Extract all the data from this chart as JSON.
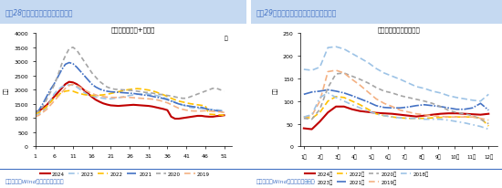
{
  "title_left": "图表28：近半月钢材库存环比续降",
  "title_right": "图表29：近半月电解铝库存环比延续回落",
  "subtitle_left": "钢材库存（厂库+社库）",
  "subtitle_right": "中国库存：电解铝：合计",
  "ylabel_left": "万吨",
  "ylabel_right": "万吨",
  "xlabel_left": "周",
  "xlabel_right": "",
  "source": "资料来源：Wind，国盛证券研究所",
  "background_color": "#ffffff",
  "header_color": "#dce6f1",
  "title_color": "#4472c4",
  "steel": {
    "xlim": [
      1,
      53
    ],
    "ylim": [
      0,
      4000
    ],
    "yticks": [
      0,
      500,
      1000,
      1500,
      2000,
      2500,
      3000,
      3500,
      4000
    ],
    "xticks": [
      1,
      6,
      11,
      16,
      21,
      26,
      31,
      36,
      41,
      46,
      51
    ],
    "series": {
      "2024": {
        "color": "#c00000",
        "lw": 1.5,
        "ls": "solid",
        "dash": null,
        "y": [
          1200,
          1250,
          1350,
          1450,
          1600,
          1750,
          1900,
          2050,
          2200,
          2280,
          2260,
          2200,
          2100,
          1980,
          1870,
          1750,
          1650,
          1580,
          1520,
          1480,
          1450,
          1440,
          1430,
          1440,
          1450,
          1460,
          1470,
          1460,
          1450,
          1440,
          1430,
          1410,
          1380,
          1350,
          1320,
          1280,
          1050,
          980,
          980,
          1000,
          1020,
          1040,
          1060,
          1080,
          1080,
          1060,
          1050,
          1050,
          1070,
          1080,
          1100,
          1100
        ]
      },
      "2023": {
        "color": "#9dc3e6",
        "lw": 1.2,
        "ls": "dashed",
        "dash": [
          4,
          2
        ],
        "y": [
          1100,
          1150,
          1250,
          1380,
          1600,
          1850,
          2000,
          2100,
          2150,
          2180,
          2160,
          2100,
          2000,
          1900,
          1820,
          1780,
          1750,
          1720,
          1700,
          1680,
          1680,
          1700,
          1720,
          1740,
          1770,
          1800,
          1820,
          1840,
          1850,
          1860,
          1850,
          1830,
          1800,
          1770,
          1720,
          1680,
          1620,
          1560,
          1500,
          1460,
          1420,
          1380,
          1360,
          1350,
          1340,
          1320,
          1310,
          1300,
          1290,
          1280,
          1250
        ]
      },
      "2022": {
        "color": "#ffc000",
        "lw": 1.2,
        "ls": "dashed",
        "dash": [
          4,
          2
        ],
        "y": [
          1150,
          1200,
          1300,
          1400,
          1550,
          1700,
          1800,
          1900,
          1950,
          1970,
          1950,
          1900,
          1860,
          1830,
          1810,
          1800,
          1800,
          1810,
          1820,
          1840,
          1870,
          1900,
          1930,
          1960,
          1990,
          2010,
          2030,
          2040,
          2030,
          2010,
          1990,
          1960,
          1920,
          1870,
          1820,
          1760,
          1700,
          1650,
          1600,
          1570,
          1540,
          1510,
          1490,
          1470,
          1450,
          1440,
          1140,
          1130,
          1120,
          1110,
          1100
        ]
      },
      "2021": {
        "color": "#4472c4",
        "lw": 1.2,
        "ls": "dashed",
        "dash": [
          6,
          1,
          1,
          1
        ],
        "y": [
          1200,
          1280,
          1500,
          1750,
          2000,
          2200,
          2450,
          2700,
          2900,
          2960,
          2920,
          2800,
          2650,
          2500,
          2350,
          2200,
          2100,
          2030,
          1980,
          1950,
          1930,
          1920,
          1910,
          1900,
          1890,
          1880,
          1870,
          1850,
          1830,
          1810,
          1800,
          1770,
          1740,
          1720,
          1690,
          1650,
          1600,
          1550,
          1500,
          1470,
          1440,
          1420,
          1400,
          1380,
          1380,
          1340,
          1300,
          1280,
          1260,
          1240,
          1200
        ]
      },
      "2020": {
        "color": "#a5a5a5",
        "lw": 1.2,
        "ls": "dashed",
        "dash": [
          3,
          2,
          3,
          2
        ],
        "y": [
          1200,
          1250,
          1400,
          1650,
          1900,
          2150,
          2500,
          2900,
          3200,
          3450,
          3500,
          3400,
          3200,
          3000,
          2800,
          2600,
          2450,
          2300,
          2200,
          2100,
          2050,
          2020,
          2010,
          2000,
          1990,
          1980,
          1970,
          1950,
          1930,
          1910,
          1900,
          1880,
          1860,
          1840,
          1820,
          1800,
          1780,
          1750,
          1720,
          1700,
          1700,
          1750,
          1800,
          1850,
          1900,
          1950,
          2000,
          2050,
          2050,
          2000,
          1950
        ]
      },
      "2019": {
        "color": "#f4b183",
        "lw": 1.2,
        "ls": "dashed",
        "dash": [
          4,
          2
        ],
        "y": [
          1050,
          1100,
          1200,
          1300,
          1450,
          1600,
          1750,
          1900,
          2050,
          2150,
          2200,
          2150,
          2080,
          2000,
          1930,
          1870,
          1820,
          1780,
          1760,
          1740,
          1730,
          1730,
          1730,
          1740,
          1740,
          1730,
          1720,
          1710,
          1700,
          1690,
          1680,
          1670,
          1650,
          1620,
          1580,
          1540,
          1480,
          1410,
          1350,
          1310,
          1280,
          1260,
          1250,
          1250,
          1250,
          1260,
          1250,
          1240,
          1230,
          1220,
          1200
        ]
      }
    }
  },
  "alum": {
    "xlabels": [
      "1月",
      "2月",
      "3月",
      "4月",
      "5月",
      "6月",
      "7月",
      "8月",
      "9月",
      "10月",
      "11月",
      "12月"
    ],
    "ylim": [
      0,
      250
    ],
    "yticks": [
      0,
      50,
      100,
      150,
      200,
      250
    ],
    "series": {
      "2024": {
        "color": "#c00000",
        "lw": 1.5,
        "ls": "solid",
        "dash": null,
        "y": [
          40,
          38,
          55,
          75,
          88,
          88,
          82,
          78,
          76,
          74,
          73,
          72,
          70,
          68,
          66,
          68,
          70,
          72,
          73,
          73,
          72,
          71,
          70,
          72
        ]
      },
      "2023": {
        "color": "#9dc3e6",
        "lw": 1.2,
        "ls": "dashed",
        "dash": [
          4,
          2
        ],
        "y": [
          170,
          168,
          175,
          218,
          220,
          215,
          205,
          195,
          185,
          172,
          162,
          155,
          148,
          140,
          132,
          128,
          122,
          118,
          112,
          108,
          105,
          102,
          100,
          115
        ]
      },
      "2022": {
        "color": "#ffc000",
        "lw": 1.2,
        "ls": "dashed",
        "dash": [
          4,
          2
        ],
        "y": [
          65,
          62,
          75,
          100,
          110,
          108,
          100,
          92,
          82,
          72,
          68,
          65,
          63,
          62,
          62,
          62,
          63,
          64,
          65,
          65,
          65,
          65,
          63,
          45
        ]
      },
      "2021": {
        "color": "#4472c4",
        "lw": 1.2,
        "ls": "dashed",
        "dash": [
          6,
          1,
          1,
          1
        ],
        "y": [
          115,
          120,
          122,
          125,
          122,
          118,
          112,
          105,
          98,
          90,
          86,
          85,
          85,
          87,
          90,
          92,
          90,
          88,
          85,
          82,
          82,
          85,
          95,
          80
        ]
      },
      "2020": {
        "color": "#a5a5a5",
        "lw": 1.2,
        "ls": "dashed",
        "dash": [
          3,
          2,
          3,
          2
        ],
        "y": [
          62,
          60,
          82,
          130,
          160,
          162,
          155,
          148,
          140,
          130,
          122,
          118,
          112,
          108,
          104,
          100,
          95,
          88,
          80,
          75,
          72,
          68,
          60,
          50
        ]
      },
      "2019": {
        "color": "#f4b183",
        "lw": 1.2,
        "ls": "dashed",
        "dash": [
          4,
          2
        ],
        "y": [
          65,
          68,
          100,
          165,
          168,
          162,
          148,
          135,
          120,
          105,
          95,
          88,
          80,
          76,
          72,
          70,
          68,
          66,
          65,
          65,
          65,
          65,
          62,
          58
        ]
      },
      "2018": {
        "color": "#9dc3e6",
        "lw": 1.2,
        "ls": "dashed",
        "dash": [
          4,
          2,
          1,
          2
        ],
        "y": [
          65,
          70,
          108,
          118,
          108,
          100,
          92,
          85,
          78,
          72,
          68,
          65,
          63,
          62,
          62,
          60,
          60,
          60,
          58,
          55,
          52,
          48,
          44,
          38
        ]
      }
    }
  }
}
